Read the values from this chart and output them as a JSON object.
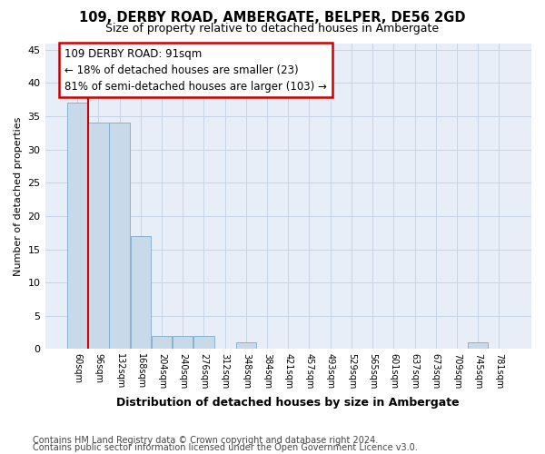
{
  "title": "109, DERBY ROAD, AMBERGATE, BELPER, DE56 2GD",
  "subtitle": "Size of property relative to detached houses in Ambergate",
  "xlabel": "Distribution of detached houses by size in Ambergate",
  "ylabel": "Number of detached properties",
  "footnote1": "Contains HM Land Registry data © Crown copyright and database right 2024.",
  "footnote2": "Contains public sector information licensed under the Open Government Licence v3.0.",
  "categories": [
    "60sqm",
    "96sqm",
    "132sqm",
    "168sqm",
    "204sqm",
    "240sqm",
    "276sqm",
    "312sqm",
    "348sqm",
    "384sqm",
    "421sqm",
    "457sqm",
    "493sqm",
    "529sqm",
    "565sqm",
    "601sqm",
    "637sqm",
    "673sqm",
    "709sqm",
    "745sqm",
    "781sqm"
  ],
  "values": [
    37,
    34,
    34,
    17,
    2,
    2,
    2,
    0,
    1,
    0,
    0,
    0,
    0,
    0,
    0,
    0,
    0,
    0,
    0,
    1,
    0
  ],
  "bar_color": "#c8d9ea",
  "bar_edge_color": "#7aaac8",
  "ylim": [
    0,
    46
  ],
  "yticks": [
    0,
    5,
    10,
    15,
    20,
    25,
    30,
    35,
    40,
    45
  ],
  "annotation_text1": "109 DERBY ROAD: 91sqm",
  "annotation_text2": "← 18% of detached houses are smaller (23)",
  "annotation_text3": "81% of semi-detached houses are larger (103) →",
  "annotation_box_color": "#ffffff",
  "annotation_box_edge": "#cc0000",
  "property_line_color": "#cc0000",
  "grid_color": "#c8d4e4",
  "background_color": "#e8eef8"
}
